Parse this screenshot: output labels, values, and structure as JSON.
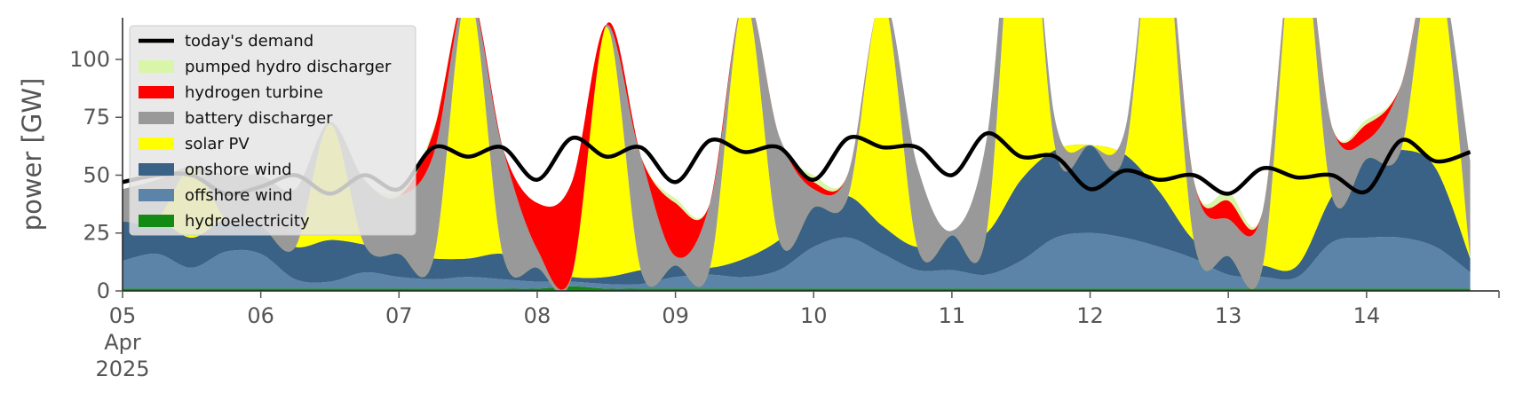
{
  "chart_data": {
    "type": "area",
    "ylabel": "power [GW]",
    "ylim": [
      0,
      118
    ],
    "yticks": [
      0,
      25,
      50,
      75,
      100
    ],
    "x_start": "2025-04-05T00:00",
    "x_end": "2025-04-14T23:00",
    "x_step_hours": 6,
    "xticks": [
      {
        "x": "2025-04-05",
        "label": "05",
        "sub1": "Apr",
        "sub2": "2025"
      },
      {
        "x": "2025-04-06",
        "label": "06",
        "sub1": "",
        "sub2": ""
      },
      {
        "x": "2025-04-07",
        "label": "07",
        "sub1": "",
        "sub2": ""
      },
      {
        "x": "2025-04-08",
        "label": "08",
        "sub1": "",
        "sub2": ""
      },
      {
        "x": "2025-04-09",
        "label": "09",
        "sub1": "",
        "sub2": ""
      },
      {
        "x": "2025-04-10",
        "label": "10",
        "sub1": "",
        "sub2": ""
      },
      {
        "x": "2025-04-11",
        "label": "11",
        "sub1": "",
        "sub2": ""
      },
      {
        "x": "2025-04-12",
        "label": "12",
        "sub1": "",
        "sub2": ""
      },
      {
        "x": "2025-04-13",
        "label": "13",
        "sub1": "",
        "sub2": ""
      },
      {
        "x": "2025-04-14",
        "label": "14",
        "sub1": "",
        "sub2": ""
      }
    ],
    "grid": false,
    "legend_position": "top-left",
    "stack_order": [
      "hydroelectricity",
      "offshore wind",
      "onshore wind",
      "solar PV",
      "battery discharger",
      "hydrogen turbine",
      "pumped hydro discharger"
    ],
    "legend": [
      {
        "label": "today's demand",
        "color": "#000000",
        "kind": "line"
      },
      {
        "label": "pumped hydro discharger",
        "color": "#d9f5a8",
        "kind": "patch"
      },
      {
        "label": "hydrogen turbine",
        "color": "#ff0000",
        "kind": "patch"
      },
      {
        "label": "battery discharger",
        "color": "#999999",
        "kind": "patch"
      },
      {
        "label": "solar PV",
        "color": "#ffff00",
        "kind": "patch"
      },
      {
        "label": "onshore wind",
        "color": "#3a6186",
        "kind": "patch"
      },
      {
        "label": "offshore wind",
        "color": "#5b84a8",
        "kind": "patch"
      },
      {
        "label": "hydroelectricity",
        "color": "#138a13",
        "kind": "patch"
      }
    ],
    "series": [
      {
        "name": "hydroelectricity",
        "color": "#138a13",
        "values": [
          1,
          1,
          1,
          1,
          1,
          1,
          1,
          1,
          1,
          1,
          1,
          1,
          1,
          2,
          1,
          1,
          1,
          1,
          1,
          1,
          1,
          1,
          1,
          1,
          1,
          1,
          1,
          1,
          1,
          1,
          1,
          1,
          1,
          1,
          1,
          1,
          1,
          1,
          1,
          1
        ]
      },
      {
        "name": "offshore wind",
        "color": "#5b84a8",
        "values": [
          12,
          15,
          9,
          16,
          15,
          4,
          3,
          7,
          5,
          4,
          5,
          4,
          3,
          2,
          2,
          2,
          5,
          6,
          5,
          8,
          18,
          22,
          15,
          8,
          8,
          6,
          12,
          22,
          24,
          22,
          18,
          13,
          6,
          5,
          5,
          20,
          22,
          22,
          18,
          7
        ]
      },
      {
        "name": "onshore wind",
        "color": "#3a6186",
        "values": [
          17,
          15,
          13,
          14,
          12,
          14,
          18,
          12,
          10,
          9,
          8,
          11,
          6,
          2,
          3,
          6,
          5,
          3,
          8,
          13,
          17,
          18,
          12,
          10,
          15,
          18,
          35,
          38,
          38,
          36,
          24,
          8,
          8,
          5,
          5,
          20,
          34,
          38,
          34,
          6
        ]
      },
      {
        "name": "solar PV",
        "color": "#ffff00",
        "values": [
          0,
          0,
          30,
          0,
          0,
          0,
          50,
          0,
          0,
          0,
          115,
          0,
          0,
          0,
          108,
          0,
          0,
          0,
          112,
          0,
          0,
          0,
          98,
          0,
          0,
          0,
          150,
          0,
          0,
          0,
          130,
          0,
          0,
          0,
          150,
          0,
          0,
          0,
          92,
          0
        ]
      },
      {
        "name": "battery discharger",
        "color": "#999999",
        "values": [
          14,
          17,
          1,
          19,
          22,
          25,
          1,
          28,
          25,
          45,
          1,
          46,
          8,
          1,
          1,
          49,
          4,
          28,
          1,
          45,
          8,
          10,
          1,
          35,
          2,
          40,
          1,
          12,
          0,
          10,
          1,
          26,
          16,
          24,
          1,
          30,
          8,
          28,
          1,
          42
        ]
      },
      {
        "name": "hydrogen turbine",
        "color": "#ff0000",
        "values": [
          0,
          0,
          0,
          0,
          0,
          0,
          0,
          0,
          0,
          10,
          0,
          0,
          20,
          40,
          0,
          0,
          23,
          0,
          0,
          0,
          3,
          0,
          0,
          0,
          0,
          0,
          0,
          0,
          0,
          0,
          0,
          0,
          8,
          0,
          0,
          0,
          7,
          0,
          0,
          0
        ]
      },
      {
        "name": "pumped hydro discharger",
        "color": "#d9f5a8",
        "values": [
          0,
          0,
          0,
          0,
          0,
          0,
          0,
          0,
          2,
          1,
          0,
          0,
          0,
          0,
          0,
          0,
          2,
          0,
          0,
          0,
          3,
          0,
          0,
          0,
          0,
          0,
          0,
          0,
          0,
          0,
          0,
          0,
          4,
          0,
          0,
          0,
          2,
          0,
          0,
          0
        ]
      }
    ],
    "demand": {
      "name": "today's demand",
      "color": "#000000",
      "values": [
        47,
        50,
        50,
        42,
        45,
        50,
        42,
        50,
        44,
        62,
        58,
        62,
        48,
        66,
        58,
        62,
        47,
        65,
        60,
        62,
        48,
        66,
        62,
        62,
        50,
        68,
        58,
        58,
        44,
        52,
        48,
        50,
        42,
        53,
        49,
        50,
        43,
        65,
        56,
        60
      ]
    }
  }
}
